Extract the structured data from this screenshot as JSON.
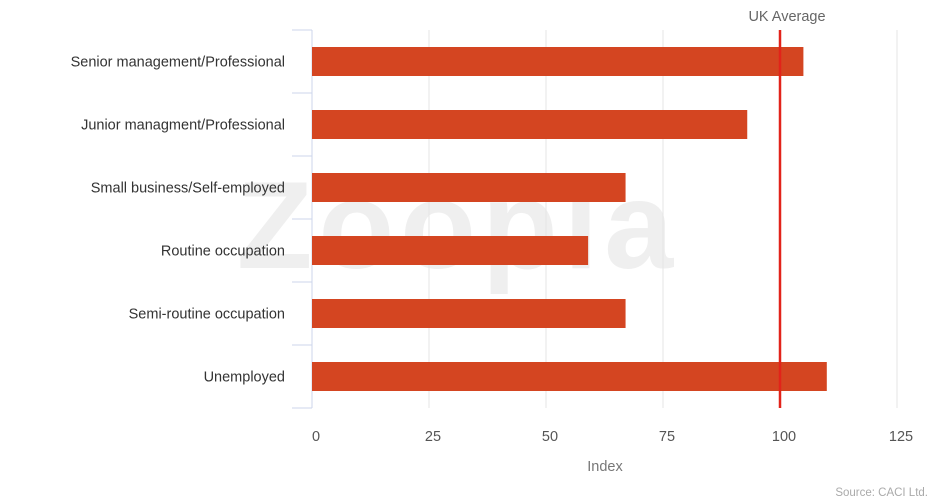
{
  "chart_data": {
    "type": "bar",
    "orientation": "horizontal",
    "categories": [
      "Senior management/Professional",
      "Junior managment/Professional",
      "Small business/Self-employed",
      "Routine occupation",
      "Semi-routine occupation",
      "Unemployed"
    ],
    "values": [
      105,
      93,
      67,
      59,
      67,
      110
    ],
    "xlabel": "Index",
    "ylabel": "",
    "xlim": [
      0,
      125
    ],
    "xticks": [
      0,
      25,
      50,
      75,
      100,
      125
    ],
    "grid": "vertical",
    "reference_line": {
      "value": 100,
      "label": "UK Average",
      "color": "#e2231a"
    },
    "bar_color": "#d44521",
    "source": "Source: CACI Ltd.",
    "watermark": "Zoopla"
  }
}
